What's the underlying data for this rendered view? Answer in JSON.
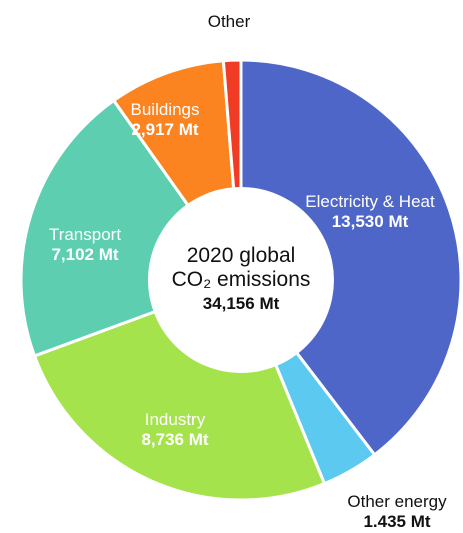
{
  "chart_data": {
    "type": "donut",
    "categories": [
      "Electricity & Heat",
      "Other energy",
      "Industry",
      "Transport",
      "Buildings",
      "Other"
    ],
    "values": [
      13530,
      1435,
      8736,
      7102,
      2917,
      436
    ],
    "value_labels": [
      "13,530 Mt",
      "1.435 Mt",
      "8,736 Mt",
      "7,102 Mt",
      "2,917 Mt",
      null
    ],
    "colors": [
      "#4f66c9",
      "#5cc9f1",
      "#a5e34c",
      "#5dcfb0",
      "#fb8421",
      "#f03c24"
    ],
    "center_text": [
      "2020 global",
      "CO₂ emissions"
    ],
    "center_value_label": "34,156 Mt"
  }
}
